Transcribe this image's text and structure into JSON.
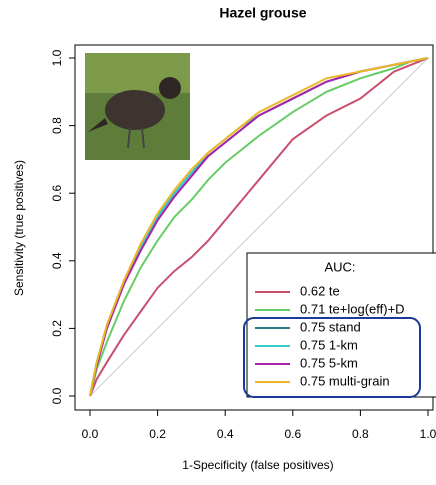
{
  "chart_data": {
    "type": "line",
    "title": "Hazel grouse",
    "x_label": "1-Specificity (false positives)",
    "y_label": "Sensitivity (true positives)",
    "x": [
      0,
      0.02,
      0.05,
      0.1,
      0.15,
      0.2,
      0.25,
      0.3,
      0.35,
      0.4,
      0.45,
      0.5,
      0.6,
      0.7,
      0.8,
      0.9,
      0.95,
      1
    ],
    "series": [
      {
        "name": "0.62 te",
        "color": "#c8506e",
        "values": [
          0,
          0.05,
          0.1,
          0.18,
          0.25,
          0.32,
          0.37,
          0.41,
          0.46,
          0.52,
          0.58,
          0.64,
          0.76,
          0.83,
          0.88,
          0.96,
          0.98,
          1
        ]
      },
      {
        "name": "0.71 te+log(eff)+D",
        "color": "#66cc66",
        "values": [
          0,
          0.08,
          0.16,
          0.28,
          0.38,
          0.46,
          0.53,
          0.58,
          0.64,
          0.69,
          0.73,
          0.77,
          0.84,
          0.9,
          0.94,
          0.97,
          0.99,
          1
        ]
      },
      {
        "name": "0.75 stand",
        "color": "#2e7d8c",
        "values": [
          0,
          0.1,
          0.2,
          0.33,
          0.44,
          0.53,
          0.6,
          0.66,
          0.71,
          0.75,
          0.79,
          0.83,
          0.88,
          0.93,
          0.96,
          0.98,
          0.99,
          1
        ]
      },
      {
        "name": "0.75 1-km",
        "color": "#33cccc",
        "values": [
          0,
          0.1,
          0.21,
          0.34,
          0.44,
          0.53,
          0.6,
          0.66,
          0.72,
          0.76,
          0.8,
          0.83,
          0.88,
          0.93,
          0.96,
          0.98,
          0.99,
          1
        ]
      },
      {
        "name": "0.75 5-km",
        "color": "#aa22aa",
        "values": [
          0,
          0.09,
          0.2,
          0.33,
          0.43,
          0.52,
          0.59,
          0.65,
          0.71,
          0.75,
          0.79,
          0.83,
          0.88,
          0.93,
          0.96,
          0.98,
          0.99,
          1
        ]
      },
      {
        "name": "0.75 multi-grain",
        "color": "#eeb822",
        "values": [
          0,
          0.1,
          0.21,
          0.34,
          0.45,
          0.54,
          0.61,
          0.67,
          0.72,
          0.76,
          0.8,
          0.84,
          0.89,
          0.94,
          0.96,
          0.98,
          0.99,
          1
        ]
      }
    ],
    "legend_title": "AUC:",
    "xlim": [
      0,
      1
    ],
    "ylim": [
      0,
      1
    ],
    "xticks": [
      {
        "value": 0,
        "label": "0.0"
      },
      0.2,
      0.4,
      0.6,
      0.8,
      {
        "value": 1,
        "label": "1.0"
      }
    ],
    "yticks": [
      {
        "value": 0,
        "label": "0.0"
      },
      0.2,
      0.4,
      0.6,
      0.8,
      {
        "value": 1,
        "label": "1.0"
      }
    ]
  }
}
